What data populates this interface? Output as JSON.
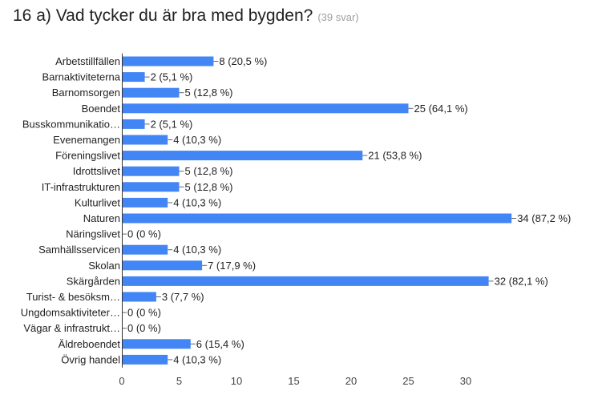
{
  "question": {
    "title": "16 a) Vad tycker du är bra med bygden?",
    "responses": "(39 svar)"
  },
  "colors": {
    "bar": "#4285f4",
    "axis": "#333333",
    "leader": "#666666",
    "text": "#222222"
  },
  "chart_data": {
    "type": "bar",
    "orientation": "horizontal",
    "title": "16 a) Vad tycker du är bra med bygden?",
    "xlabel": "",
    "ylabel": "",
    "xlim": [
      0,
      34
    ],
    "ticks": [
      0,
      5,
      10,
      15,
      20,
      25,
      30
    ],
    "grid": false,
    "legend": "none",
    "categories": [
      "Arbetstillfällen",
      "Barnaktiviteterna",
      "Barnomsorgen",
      "Boendet",
      "Busskommunikatio…",
      "Evenemangen",
      "Föreningslivet",
      "Idrottslivet",
      "IT-infrastrukturen",
      "Kulturlivet",
      "Naturen",
      "Näringslivet",
      "Samhällsservicen",
      "Skolan",
      "Skärgården",
      "Turist- & besöksm…",
      "Ungdomsaktiviteter…",
      "Vägar & infrastrukt…",
      "Äldreboendet",
      "Övrig handel"
    ],
    "values": [
      8,
      2,
      5,
      25,
      2,
      4,
      21,
      5,
      5,
      4,
      34,
      0,
      4,
      7,
      32,
      3,
      0,
      0,
      6,
      4
    ],
    "labels": [
      "8 (20,5 %)",
      "2 (5,1 %)",
      "5 (12,8 %)",
      "25 (64,1 %)",
      "2 (5,1 %)",
      "4 (10,3 %)",
      "21 (53,8 %)",
      "5 (12,8 %)",
      "5 (12,8 %)",
      "4 (10,3 %)",
      "34 (87,2 %)",
      "0 (0 %)",
      "4 (10,3 %)",
      "7 (17,9 %)",
      "32 (82,1 %)",
      "3 (7,7 %)",
      "0 (0 %)",
      "0 (0 %)",
      "6 (15,4 %)",
      "4 (10,3 %)"
    ]
  }
}
